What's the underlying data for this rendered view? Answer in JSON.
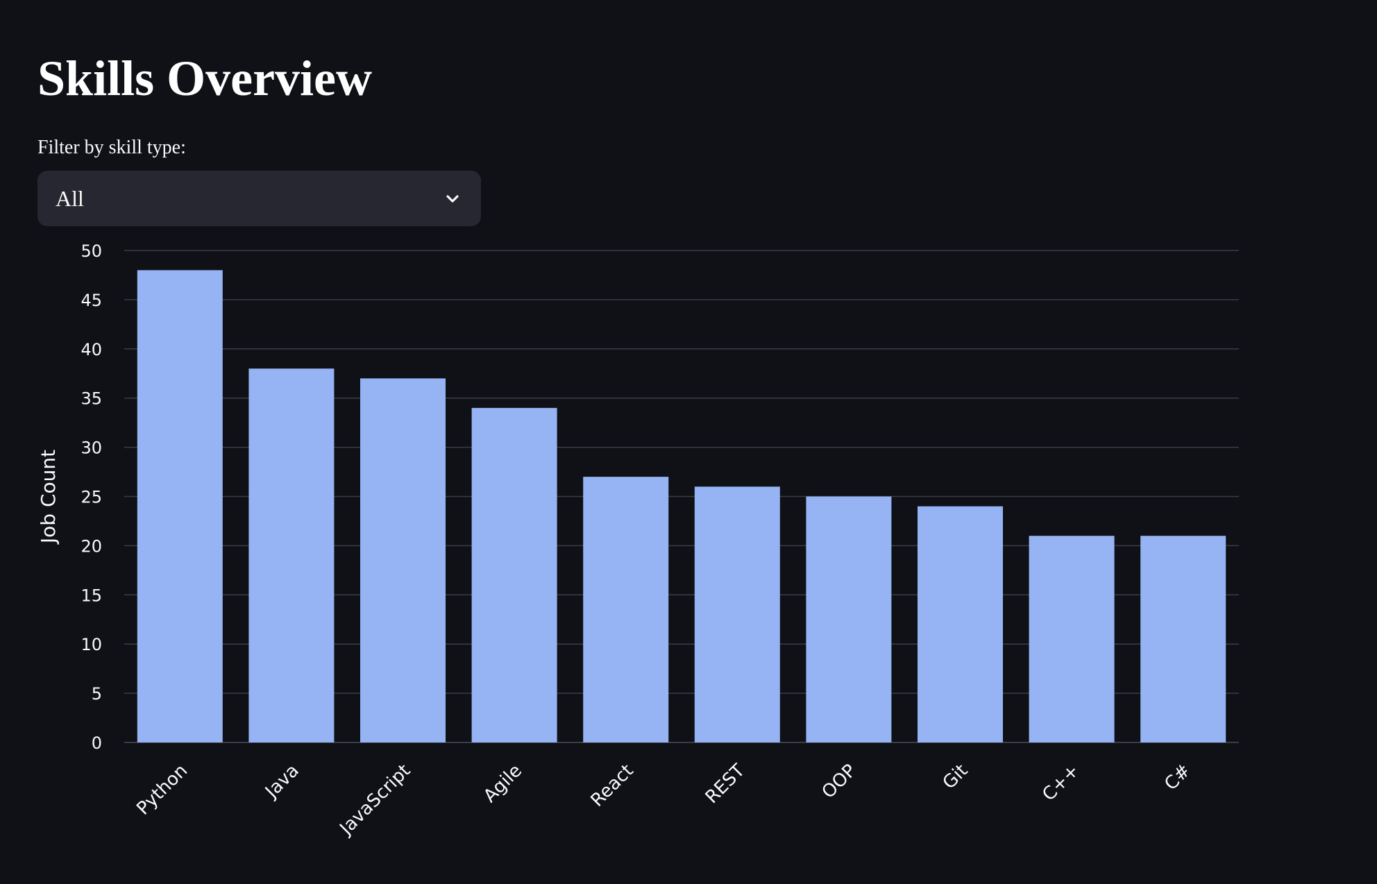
{
  "page": {
    "title": "Skills Overview"
  },
  "filter": {
    "label": "Filter by skill type:",
    "selected": "All"
  },
  "colors": {
    "background": "#0f1117",
    "bar": "#96b3f3",
    "grid": "#3a3d47",
    "select_bg": "#262730"
  },
  "icons": {
    "select_chevron": "chevron-down-icon"
  },
  "chart_data": {
    "type": "bar",
    "categories": [
      "Python",
      "Java",
      "JavaScript",
      "Agile",
      "React",
      "REST",
      "OOP",
      "Git",
      "C++",
      "C#"
    ],
    "values": [
      48,
      38,
      37,
      34,
      27,
      26,
      25,
      24,
      21,
      21
    ],
    "ylabel": "Job Count",
    "ylim": [
      0,
      50
    ],
    "yticks": [
      0,
      5,
      10,
      15,
      20,
      25,
      30,
      35,
      40,
      45,
      50
    ],
    "grid": true,
    "legend": "none"
  }
}
